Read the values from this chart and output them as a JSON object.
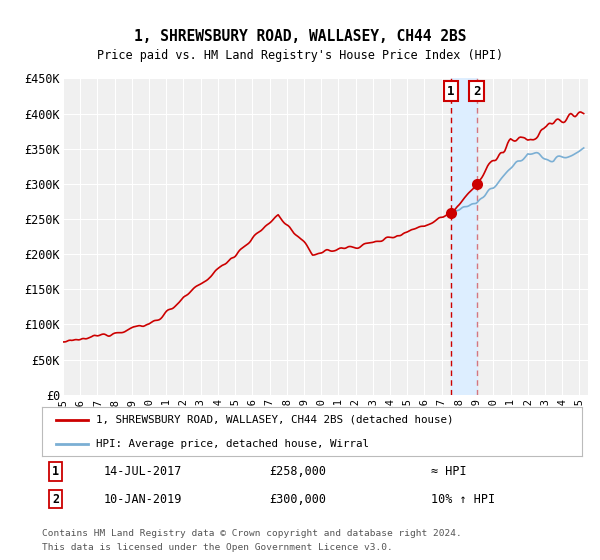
{
  "title": "1, SHREWSBURY ROAD, WALLASEY, CH44 2BS",
  "subtitle": "Price paid vs. HM Land Registry's House Price Index (HPI)",
  "ylim": [
    0,
    450000
  ],
  "yticks": [
    0,
    50000,
    100000,
    150000,
    200000,
    250000,
    300000,
    350000,
    400000,
    450000
  ],
  "ytick_labels": [
    "£0",
    "£50K",
    "£100K",
    "£150K",
    "£200K",
    "£250K",
    "£300K",
    "£350K",
    "£400K",
    "£450K"
  ],
  "xlim_start": 1995.0,
  "xlim_end": 2025.5,
  "hpi_color": "#7bafd4",
  "price_color": "#cc0000",
  "marker_color": "#cc0000",
  "dashed_line_color": "#cc0000",
  "shade_color": "#ddeeff",
  "background_color": "#f0f0f0",
  "grid_color": "#ffffff",
  "transaction1_year": 2017.54,
  "transaction1_price": 258000,
  "transaction2_year": 2019.03,
  "transaction2_price": 300000,
  "legend_line1": "1, SHREWSBURY ROAD, WALLASEY, CH44 2BS (detached house)",
  "legend_line2": "HPI: Average price, detached house, Wirral",
  "note1_date": "14-JUL-2017",
  "note1_price": "£258,000",
  "note1_hpi": "≈ HPI",
  "note2_date": "10-JAN-2019",
  "note2_price": "£300,000",
  "note2_hpi": "10% ↑ HPI",
  "footer1": "Contains HM Land Registry data © Crown copyright and database right 2024.",
  "footer2": "This data is licensed under the Open Government Licence v3.0."
}
